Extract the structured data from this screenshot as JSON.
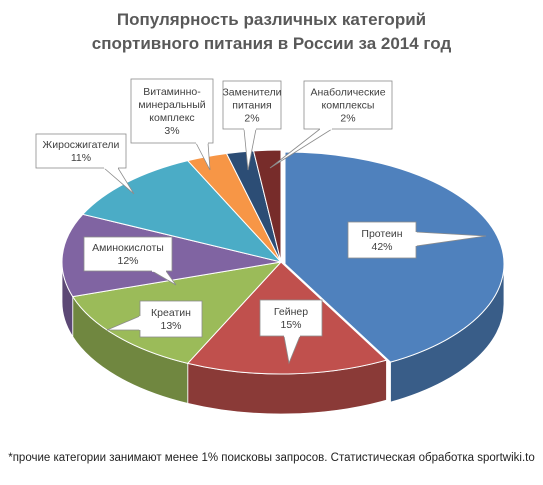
{
  "title_line1": "Популярность различных категорий",
  "title_line2": "спортивного питания в России за 2014 год",
  "footnote": "*прочие категории занимают менее 1% поисковы запросов. Статистическая обработка sportwiki.to",
  "chart_data": {
    "type": "pie",
    "three_d": true,
    "title": "Популярность различных категорий спортивного питания в России за 2014 год",
    "slices": [
      {
        "label": [
          "Протеин"
        ],
        "value": 42,
        "value_label": "42%",
        "color": "#4F81BD"
      },
      {
        "label": [
          "Гейнер"
        ],
        "value": 15,
        "value_label": "15%",
        "color": "#C0504D"
      },
      {
        "label": [
          "Креатин"
        ],
        "value": 13,
        "value_label": "13%",
        "color": "#9BBB59"
      },
      {
        "label": [
          "Аминокислоты"
        ],
        "value": 12,
        "value_label": "12%",
        "color": "#8064A2"
      },
      {
        "label": [
          "Жиросжигатели"
        ],
        "value": 11,
        "value_label": "11%",
        "color": "#4BACC6"
      },
      {
        "label": [
          "Витаминно-",
          "минеральный",
          "комплекс"
        ],
        "value": 3,
        "value_label": "3%",
        "color": "#F79646"
      },
      {
        "label": [
          "Заменители",
          "питания"
        ],
        "value": 2,
        "value_label": "2%",
        "color": "#2C4D75"
      },
      {
        "label": [
          "Анаболические",
          "комплексы"
        ],
        "value": 2,
        "value_label": "2%",
        "color": "#772C2A"
      }
    ]
  }
}
